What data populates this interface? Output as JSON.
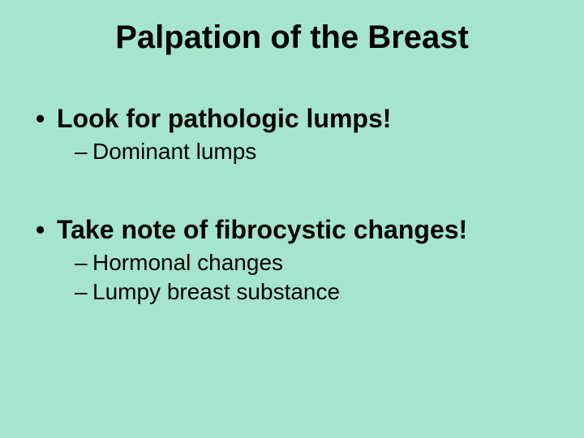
{
  "slide": {
    "title": "Palpation of the Breast",
    "background_color": "#a5e5cd",
    "text_color": "#000000",
    "font_family": "Arial",
    "title_fontsize": 40,
    "l1_fontsize": 32,
    "l2_fontsize": 28,
    "bullets": [
      {
        "text": "Look for pathologic lumps!",
        "sub": [
          {
            "text": "Dominant lumps"
          }
        ]
      },
      {
        "text": "Take note of fibrocystic changes!",
        "sub": [
          {
            "text": "Hormonal changes"
          },
          {
            "text": "Lumpy breast substance"
          }
        ]
      }
    ]
  }
}
